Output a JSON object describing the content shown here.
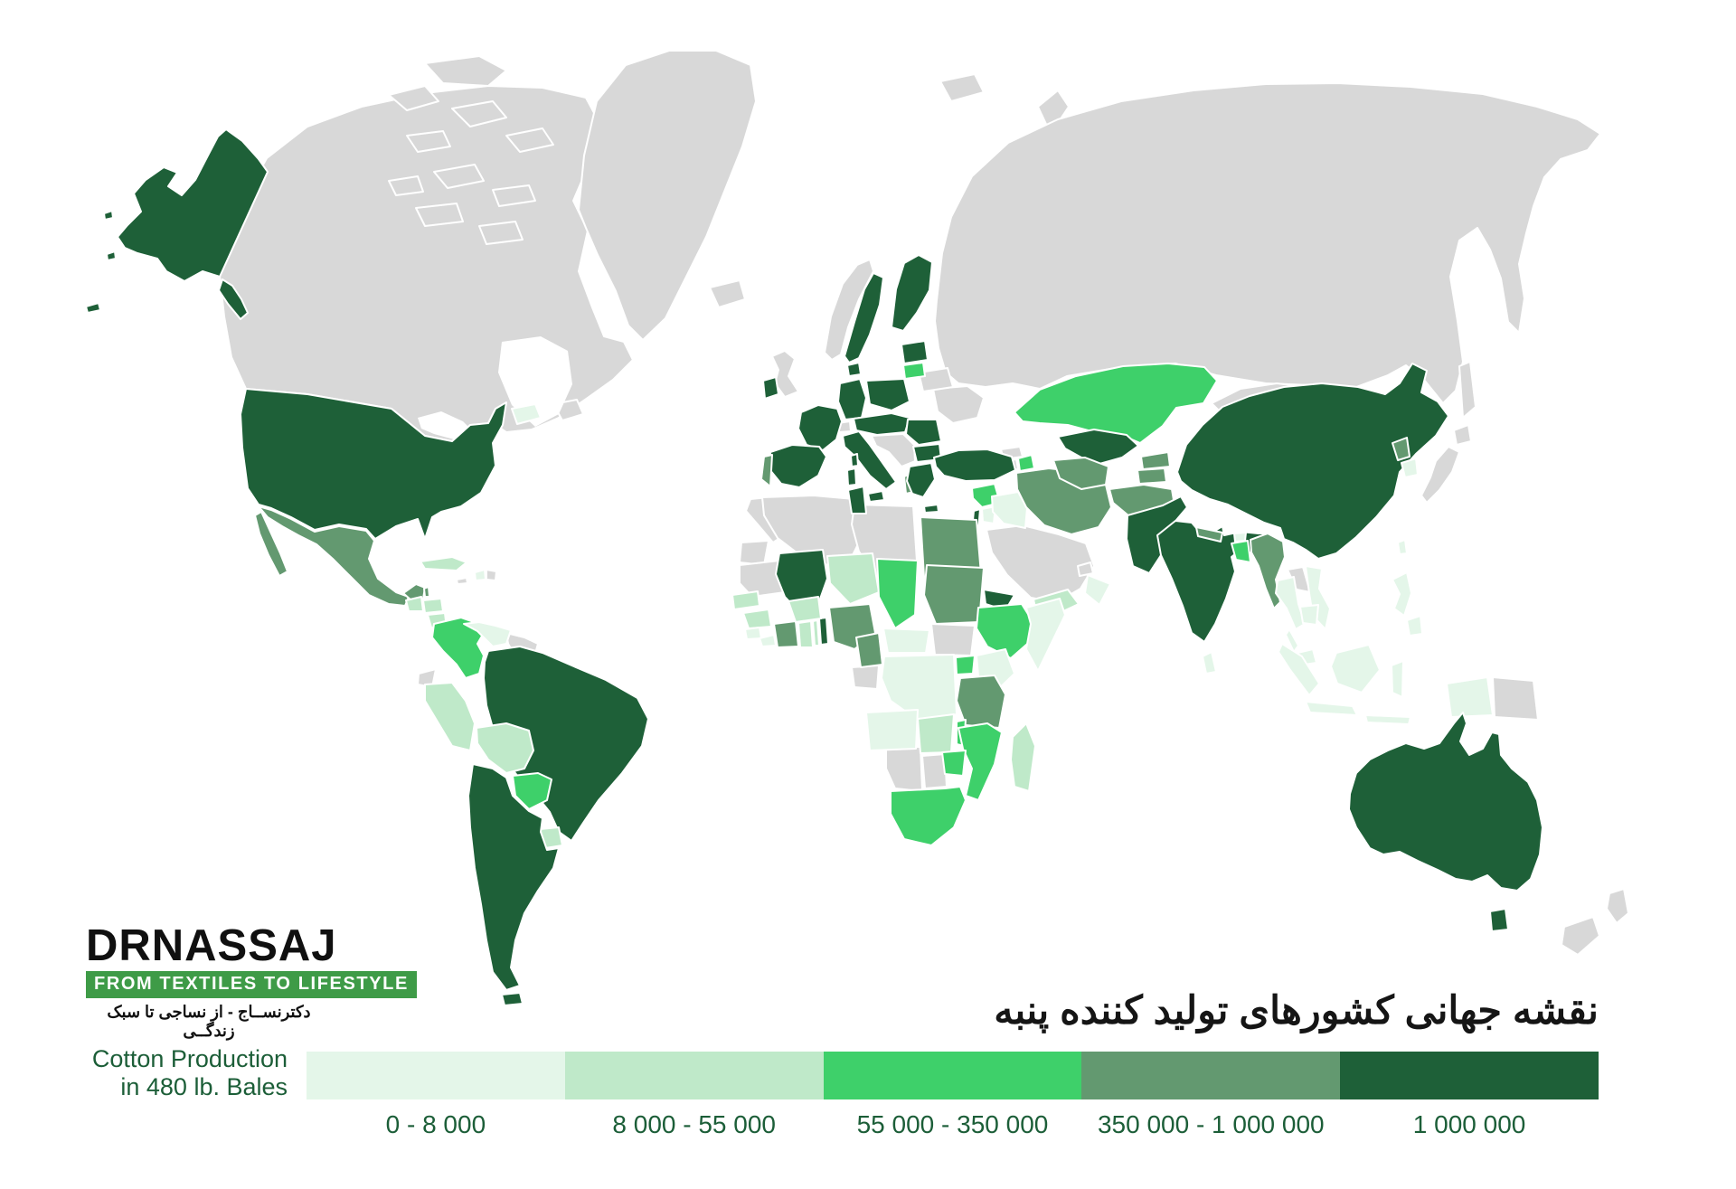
{
  "branding": {
    "logo_text": "DRNASSAJ",
    "tagline_en": "FROM TEXTILES TO LIFESTYLE",
    "tagline_fa": "دکترنســاج - از نساجی تا سبک زندگــی",
    "banner_color": "#3e9b47",
    "logo_text_color": "#101010"
  },
  "title_fa": "نقشه جهانی کشورهای تولید کننده پنبه",
  "legend": {
    "title_line1": "Cotton Production",
    "title_line2": "in 480 lb. Bales",
    "text_color": "#1c5e38",
    "categories": [
      {
        "label": "0 - 8 000",
        "color": "#e4f6e9",
        "tier": "t1"
      },
      {
        "label": "8 000 - 55 000",
        "color": "#bfe9c9",
        "tier": "t2"
      },
      {
        "label": "55 000 - 350 000",
        "color": "#3ed06a",
        "tier": "t3"
      },
      {
        "label": "350 000 - 1 000 000",
        "color": "#639970",
        "tier": "t4"
      },
      {
        "label": "1 000 000",
        "color": "#1e6038",
        "tier": "t5"
      }
    ]
  },
  "map": {
    "ocean_color": "#ffffff",
    "no_data_color": "#d8d8d8",
    "border_color": "#ffffff",
    "tier_colors": {
      "t1": "#e4f6e9",
      "t2": "#bfe9c9",
      "t3": "#3ed06a",
      "t4": "#639970",
      "t5": "#1e6038"
    },
    "countries": {
      "usa": "t5",
      "mexico": "t4",
      "belize": "t4",
      "guatemala": "t2",
      "honduras": "t2",
      "nicaragua": "t2",
      "costa-rica": "t1",
      "panama": "t1",
      "cuba": "t2",
      "haiti": "t1",
      "maritimes": "t1",
      "colombia": "t3",
      "venezuela": "t1",
      "peru": "t2",
      "bolivia": "t2",
      "paraguay": "t3",
      "uruguay": "t2",
      "brazil": "t5",
      "argentina": "t5",
      "tierra-del-fuego": "t5",
      "ireland": "t5",
      "sweden": "t5",
      "finland": "t5",
      "denmark": "t5",
      "estonia-latvia": "t5",
      "lithuania": "t3",
      "germany": "t5",
      "poland": "t5",
      "france": "t5",
      "spain": "t5",
      "portugal": "t4",
      "italy": "t5",
      "corsica": "t5",
      "sardinia": "t5",
      "sicily": "t5",
      "central-eu": "t5",
      "romania": "t5",
      "bulgaria": "t5",
      "greece": "t5",
      "crete": "t5",
      "albania": "t4",
      "turkey": "t5",
      "cyprus": "t5",
      "syria": "t3",
      "israel": "t5",
      "jordan": "t1",
      "iraq": "t1",
      "iran": "t4",
      "azerbaijan": "t3",
      "yemen": "t2",
      "oman": "t1",
      "kazakhstan": "t3",
      "uzbekistan": "t5",
      "turkmenistan": "t4",
      "kyrgyzstan": "t4",
      "tajikistan": "t4",
      "afghanistan": "t4",
      "pakistan": "t5",
      "india": "t5",
      "nepal": "t4",
      "bhutan": "t1",
      "bangladesh": "t3",
      "sri-lanka": "t1",
      "myanmar": "t4",
      "china": "t5",
      "north-korea": "t4",
      "south-korea": "t1",
      "taiwan": "t1",
      "thailand": "t1",
      "vietnam": "t1",
      "cambodia": "t1",
      "malaysia": "t1",
      "borneo": "t1",
      "sumatra": "t1",
      "java": "t1",
      "sulawesi": "t1",
      "lesser-sunda": "t1",
      "west-papua": "t1",
      "philippines": "t1",
      "tunisia": "t5",
      "egypt": "t4",
      "mali": "t5",
      "senegal": "t2",
      "guinea": "t2",
      "sierra-leone": "t1",
      "liberia": "t1",
      "ivory-coast": "t4",
      "ghana": "t2",
      "togo": "t2",
      "benin": "t5",
      "burkina": "t2",
      "niger": "t2",
      "nigeria": "t4",
      "chad": "t3",
      "sudan": "t4",
      "eritrea": "t5",
      "ethiopia": "t3",
      "somalia": "t1",
      "cameroon": "t4",
      "car": "t1",
      "drc": "t1",
      "uganda": "t3",
      "kenya": "t1",
      "tanzania": "t4",
      "angola": "t1",
      "zambia": "t2",
      "malawi": "t3",
      "mozambique": "t3",
      "zimbabwe": "t3",
      "south-africa": "t3",
      "madagascar": "t2",
      "australia": "t5",
      "tasmania": "t5"
    }
  }
}
